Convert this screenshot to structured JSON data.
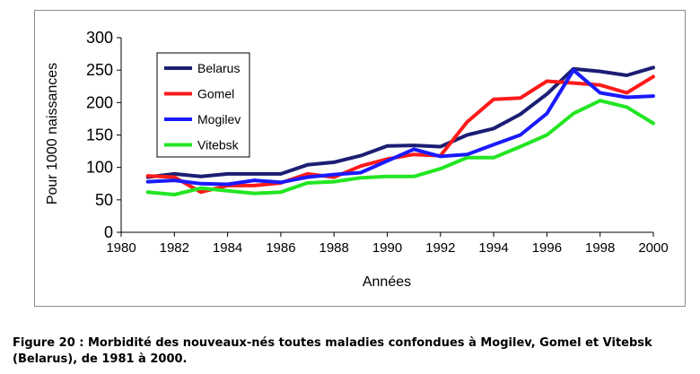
{
  "chart_data": {
    "type": "line",
    "title": "",
    "xlabel": "Années",
    "ylabel": "Pour 1000 naissances",
    "xlim": [
      1980,
      2000
    ],
    "ylim": [
      0,
      300
    ],
    "x_ticks": [
      1980,
      1982,
      1984,
      1986,
      1988,
      1990,
      1992,
      1994,
      1996,
      1998,
      2000
    ],
    "y_ticks": [
      0,
      50,
      100,
      150,
      200,
      250,
      300
    ],
    "grid": false,
    "legend_position": "top-left",
    "x": [
      1981,
      1982,
      1983,
      1984,
      1985,
      1986,
      1987,
      1988,
      1989,
      1990,
      1991,
      1992,
      1993,
      1994,
      1995,
      1996,
      1997,
      1998,
      1999,
      2000
    ],
    "series": [
      {
        "name": "Belarus",
        "color": "#1c1e73",
        "values": [
          85,
          90,
          86,
          90,
          90,
          90,
          104,
          108,
          118,
          133,
          134,
          132,
          150,
          160,
          182,
          213,
          252,
          248,
          242,
          254
        ]
      },
      {
        "name": "Gomel",
        "color": "#ff1a1a",
        "values": [
          87,
          85,
          62,
          72,
          72,
          76,
          90,
          85,
          102,
          113,
          120,
          118,
          170,
          205,
          207,
          233,
          230,
          227,
          215,
          240
        ]
      },
      {
        "name": "Mogilev",
        "color": "#1a1aff",
        "values": [
          78,
          80,
          75,
          74,
          80,
          77,
          85,
          89,
          92,
          110,
          128,
          117,
          120,
          135,
          150,
          183,
          250,
          215,
          208,
          210
        ]
      },
      {
        "name": "Vitebsk",
        "color": "#22e622",
        "values": [
          62,
          58,
          68,
          64,
          60,
          62,
          76,
          78,
          84,
          86,
          86,
          98,
          115,
          115,
          132,
          150,
          183,
          203,
          193,
          168
        ]
      }
    ]
  },
  "caption": {
    "line1": "Figure 20 : Morbidité des nouveaux-nés toutes maladies confondues à Mogilev, Gomel et Vitebsk",
    "line2": "(Belarus), de 1981 à 2000."
  }
}
